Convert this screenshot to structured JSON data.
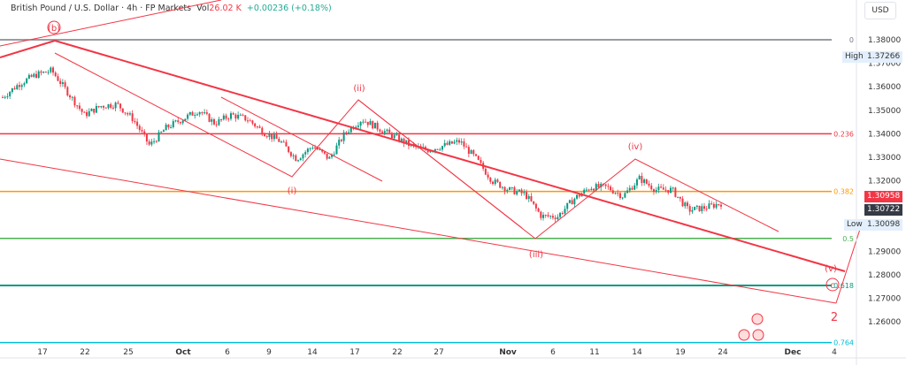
{
  "header": {
    "symbol": "British Pound / U.S. Dollar · 4h · FP Markets",
    "vol_label": "Vol",
    "vol_value": "26.02 K",
    "change": "+0.00236 (+0.18%)"
  },
  "currency_button": "USD",
  "price_axis": {
    "ticks": [
      "1.38000",
      "1.37000",
      "1.36000",
      "1.35000",
      "1.34000",
      "1.33000",
      "1.32000",
      "1.29000",
      "1.28000",
      "1.27000",
      "1.26000"
    ],
    "high_label": "High",
    "high_value": "1.37266",
    "low_label": "Low",
    "low_value": "1.30098",
    "last_price": "1.30958",
    "prev_price": "1.30722"
  },
  "time_axis": [
    "17",
    "22",
    "25",
    "Oct",
    "6",
    "9",
    "14",
    "17",
    "22",
    "27",
    "Nov",
    "6",
    "11",
    "14",
    "19",
    "24",
    "Dec",
    "4"
  ],
  "fib_levels": [
    {
      "label": "0",
      "price": 1.38,
      "color": "#787b86"
    },
    {
      "label": "0.236",
      "price": 1.34,
      "color": "#f23645"
    },
    {
      "label": "0.382",
      "price": 1.3155,
      "color": "#ff9800"
    },
    {
      "label": "0.5",
      "price": 1.2955,
      "color": "#4caf50"
    },
    {
      "label": "0.618",
      "price": 1.2755,
      "color": "#089981"
    },
    {
      "label": "0.764",
      "price": 1.2512,
      "color": "#00bcd4"
    }
  ],
  "wave_labels": [
    "(b)",
    "(i)",
    "(ii)",
    "(iii)",
    "(iv)",
    "(v)",
    "c",
    "2"
  ],
  "chart_data": {
    "type": "candlestick",
    "ylim": [
      1.25,
      1.39
    ],
    "price_path": [
      1.3556,
      1.3612,
      1.365,
      1.3669,
      1.3575,
      1.348,
      1.3518,
      1.3526,
      1.3462,
      1.335,
      1.3425,
      1.3462,
      1.35,
      1.3444,
      1.3481,
      1.3462,
      1.3406,
      1.3368,
      1.3293,
      1.3349,
      1.3293,
      1.3406,
      1.3462,
      1.3425,
      1.3387,
      1.3349,
      1.3331,
      1.3349,
      1.3368,
      1.3293,
      1.3199,
      1.3162,
      1.3143,
      1.3049,
      1.3049,
      1.3124,
      1.3173,
      1.3173,
      1.3135,
      1.321,
      1.3162,
      1.3162,
      1.3075,
      1.3086,
      1.3105
    ]
  }
}
